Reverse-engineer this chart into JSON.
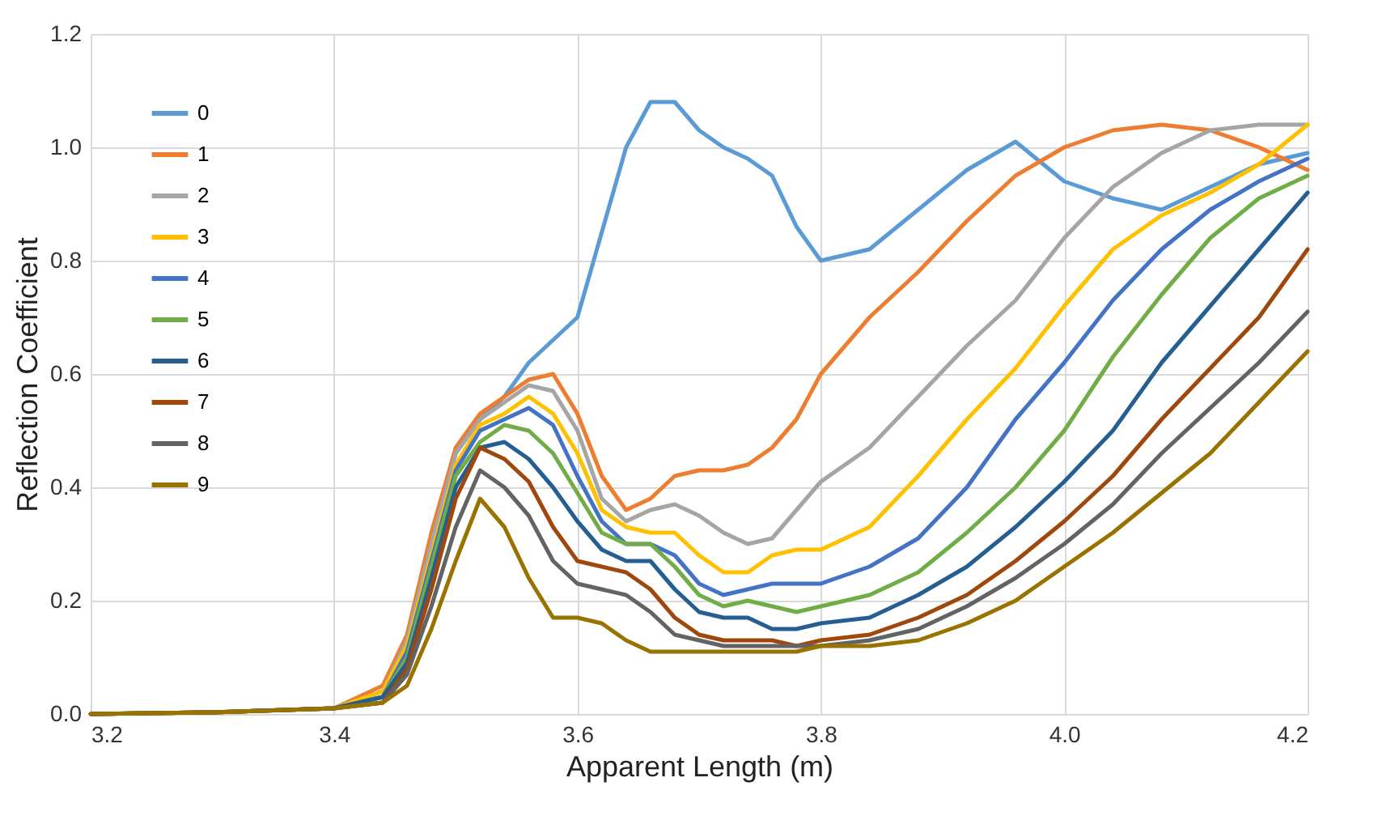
{
  "chart_data": {
    "type": "line",
    "xlabel": "Apparent Length (m)",
    "ylabel": "Reflection Coefficient",
    "x": [
      3.2,
      3.3,
      3.4,
      3.44,
      3.46,
      3.48,
      3.5,
      3.52,
      3.54,
      3.56,
      3.58,
      3.6,
      3.62,
      3.64,
      3.66,
      3.68,
      3.7,
      3.72,
      3.74,
      3.76,
      3.78,
      3.8,
      3.84,
      3.88,
      3.92,
      3.96,
      4.0,
      4.04,
      4.08,
      4.12,
      4.16,
      4.2
    ],
    "xlim": [
      3.2,
      4.2
    ],
    "xticks": [
      3.2,
      3.4,
      3.6,
      3.8,
      {
        "value": 4,
        "label": "4.0"
      },
      4.2
    ],
    "ylim": [
      0,
      1.2
    ],
    "yticks": [
      {
        "value": 0,
        "label": "0.0"
      },
      0.2,
      0.4,
      0.6,
      0.8,
      {
        "value": 1,
        "label": "1.0"
      },
      1.2
    ],
    "grid": true,
    "legend": "top left",
    "marker": "none",
    "line_style": "solid",
    "series": [
      {
        "name": "0",
        "color": "#5b9bd5",
        "values": [
          null,
          null,
          0.01,
          0.04,
          0.13,
          0.3,
          0.46,
          0.52,
          0.56,
          0.62,
          0.66,
          0.7,
          0.85,
          1.0,
          1.08,
          1.08,
          1.03,
          1.0,
          0.98,
          0.95,
          0.86,
          0.8,
          0.82,
          0.89,
          0.96,
          1.01,
          0.94,
          0.91,
          0.89,
          0.93,
          0.97,
          0.99
        ]
      },
      {
        "name": "1",
        "color": "#ed7d31",
        "values": [
          0,
          0.003,
          0.01,
          0.05,
          0.14,
          0.32,
          0.47,
          0.53,
          0.56,
          0.59,
          0.6,
          0.53,
          0.42,
          0.36,
          0.38,
          0.42,
          0.43,
          0.43,
          0.44,
          0.47,
          0.52,
          0.6,
          0.7,
          0.78,
          0.87,
          0.95,
          1.0,
          1.03,
          1.04,
          1.03,
          1.0,
          0.96
        ]
      },
      {
        "name": "2",
        "color": "#a5a5a5",
        "values": [
          0,
          0.003,
          0.01,
          0.04,
          0.13,
          0.3,
          0.46,
          0.52,
          0.55,
          0.58,
          0.57,
          0.5,
          0.38,
          0.34,
          0.36,
          0.37,
          0.35,
          0.32,
          0.3,
          0.31,
          0.36,
          0.41,
          0.47,
          0.56,
          0.65,
          0.73,
          0.84,
          0.93,
          0.99,
          1.03,
          1.04,
          1.04
        ]
      },
      {
        "name": "3",
        "color": "#ffc000",
        "values": [
          0,
          0.003,
          0.01,
          0.04,
          0.12,
          0.28,
          0.44,
          0.51,
          0.53,
          0.56,
          0.53,
          0.46,
          0.36,
          0.33,
          0.32,
          0.32,
          0.28,
          0.25,
          0.25,
          0.28,
          0.29,
          0.29,
          0.33,
          0.42,
          0.52,
          0.61,
          0.72,
          0.82,
          0.88,
          0.92,
          0.97,
          1.04
        ]
      },
      {
        "name": "4",
        "color": "#4472c4",
        "values": [
          null,
          null,
          0.01,
          0.03,
          0.11,
          0.27,
          0.43,
          0.5,
          0.52,
          0.54,
          0.51,
          0.42,
          0.34,
          0.3,
          0.3,
          0.28,
          0.23,
          0.21,
          0.22,
          0.23,
          0.23,
          0.23,
          0.26,
          0.31,
          0.4,
          0.52,
          0.62,
          0.73,
          0.82,
          0.89,
          0.94,
          0.98
        ]
      },
      {
        "name": "5",
        "color": "#70ad47",
        "values": [
          0,
          0.003,
          0.01,
          0.03,
          0.1,
          0.26,
          0.42,
          0.48,
          0.51,
          0.5,
          0.46,
          0.39,
          0.32,
          0.3,
          0.3,
          0.26,
          0.21,
          0.19,
          0.2,
          0.19,
          0.18,
          0.19,
          0.21,
          0.25,
          0.32,
          0.4,
          0.5,
          0.63,
          0.74,
          0.84,
          0.91,
          0.95
        ]
      },
      {
        "name": "6",
        "color": "#255e91",
        "values": [
          0,
          0.003,
          0.01,
          0.03,
          0.09,
          0.24,
          0.4,
          0.47,
          0.48,
          0.45,
          0.4,
          0.34,
          0.29,
          0.27,
          0.27,
          0.22,
          0.18,
          0.17,
          0.17,
          0.15,
          0.15,
          0.16,
          0.17,
          0.21,
          0.26,
          0.33,
          0.41,
          0.5,
          0.62,
          0.72,
          0.82,
          0.92
        ]
      },
      {
        "name": "7",
        "color": "#9e480e",
        "values": [
          0,
          0.003,
          0.01,
          0.02,
          0.08,
          0.22,
          0.38,
          0.47,
          0.45,
          0.41,
          0.33,
          0.27,
          0.26,
          0.25,
          0.22,
          0.17,
          0.14,
          0.13,
          0.13,
          0.13,
          0.12,
          0.13,
          0.14,
          0.17,
          0.21,
          0.27,
          0.34,
          0.42,
          0.52,
          0.61,
          0.7,
          0.82
        ]
      },
      {
        "name": "8",
        "color": "#636363",
        "values": [
          0,
          0.003,
          0.01,
          0.02,
          0.07,
          0.19,
          0.33,
          0.43,
          0.4,
          0.35,
          0.27,
          0.23,
          0.22,
          0.21,
          0.18,
          0.14,
          0.13,
          0.12,
          0.12,
          0.12,
          0.12,
          0.12,
          0.13,
          0.15,
          0.19,
          0.24,
          0.3,
          0.37,
          0.46,
          0.54,
          0.62,
          0.71
        ]
      },
      {
        "name": "9",
        "color": "#997300",
        "values": [
          0,
          0.003,
          0.01,
          0.02,
          0.05,
          0.15,
          0.27,
          0.38,
          0.33,
          0.24,
          0.17,
          0.17,
          0.16,
          0.13,
          0.11,
          0.11,
          0.11,
          0.11,
          0.11,
          0.11,
          0.11,
          0.12,
          0.12,
          0.13,
          0.16,
          0.2,
          0.26,
          0.32,
          0.39,
          0.46,
          0.55,
          0.64
        ]
      }
    ]
  }
}
